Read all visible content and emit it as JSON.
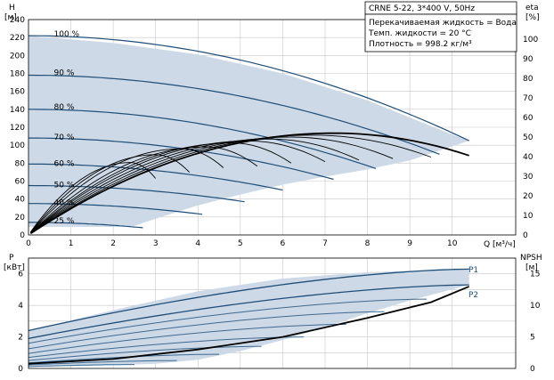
{
  "header": {
    "model": "CRNE 5-22, 3*400 V, 50Hz",
    "info_lines": [
      "Перекачиваемая жидкость = Вода",
      "Темп. жидкости = 20 °C",
      "Плотность = 998.2 кг/м³"
    ]
  },
  "axes": {
    "h_label": "H",
    "h_unit": "[м]",
    "eta_label": "eta",
    "eta_unit": "[%]",
    "q_label": "Q [м³/ч]",
    "p_label": "P",
    "p_unit": "[кВт]",
    "npsh_label": "NPSH",
    "npsh_unit": "[м]"
  },
  "colors": {
    "envelope_fill": "#cdd9e6",
    "grid": "#c7c7c7",
    "curve_dark": "#1f4e79",
    "curve_black": "#000000",
    "curve_medium": "#3e6a93"
  },
  "chart_data": [
    {
      "type": "line",
      "name": "head-curves",
      "xlabel": "Q [м³/ч]",
      "ylabel": "H [м]",
      "y2label": "eta [%]",
      "xlim": [
        0,
        11.5
      ],
      "ylim": [
        0,
        240
      ],
      "y2lim": [
        0,
        110
      ],
      "x_ticks": [
        0,
        1,
        2,
        3,
        4,
        5,
        6,
        7,
        8,
        9,
        10
      ],
      "y_ticks": [
        0,
        20,
        40,
        60,
        80,
        100,
        120,
        140,
        160,
        180,
        200,
        220,
        240
      ],
      "y2_ticks": [
        0,
        10,
        20,
        30,
        40,
        50,
        60,
        70,
        80,
        90,
        100
      ],
      "grid": true,
      "speed_labels": [
        {
          "text": "100 %",
          "at_q": 0.6,
          "at_h": 224
        },
        {
          "text": "90 %",
          "at_q": 0.6,
          "at_h": 181
        },
        {
          "text": "80 %",
          "at_q": 0.6,
          "at_h": 143
        },
        {
          "text": "70 %",
          "at_q": 0.6,
          "at_h": 109
        },
        {
          "text": "60 %",
          "at_q": 0.6,
          "at_h": 80
        },
        {
          "text": "50 %",
          "at_q": 0.6,
          "at_h": 56
        },
        {
          "text": "40 %",
          "at_q": 0.6,
          "at_h": 36
        },
        {
          "text": "25 %",
          "at_q": 0.6,
          "at_h": 16
        }
      ],
      "envelope": {
        "upper": [
          [
            0,
            222
          ],
          [
            2,
            214
          ],
          [
            4,
            201
          ],
          [
            6,
            180
          ],
          [
            8,
            150
          ],
          [
            10,
            112
          ],
          [
            10.4,
            105
          ]
        ],
        "lower": [
          [
            10.4,
            105
          ],
          [
            9,
            83
          ],
          [
            8,
            73
          ],
          [
            7,
            65
          ],
          [
            6,
            56
          ],
          [
            5,
            45
          ],
          [
            4,
            33
          ],
          [
            3,
            18
          ],
          [
            2.5,
            10
          ],
          [
            2,
            9
          ],
          [
            1,
            9
          ],
          [
            0,
            9
          ]
        ]
      },
      "head_curves": [
        {
          "speed": 100,
          "h0": 222,
          "qmax": 10.4,
          "hend": 105
        },
        {
          "speed": 90,
          "h0": 178,
          "qmax": 9.7,
          "hend": 90
        },
        {
          "speed": 80,
          "h0": 140,
          "qmax": 8.2,
          "hend": 74
        },
        {
          "speed": 70,
          "h0": 108,
          "qmax": 7.2,
          "hend": 62
        },
        {
          "speed": 60,
          "h0": 79,
          "qmax": 6.0,
          "hend": 50
        },
        {
          "speed": 50,
          "h0": 55,
          "qmax": 5.1,
          "hend": 37
        },
        {
          "speed": 40,
          "h0": 35,
          "qmax": 4.1,
          "hend": 23
        },
        {
          "speed": 25,
          "h0": 14,
          "qmax": 2.7,
          "hend": 8
        }
      ],
      "eta_curves": [
        {
          "qmax": 10.4,
          "peak": 52,
          "qpeak": 7.2
        },
        {
          "qmax": 9.5,
          "peak": 51,
          "qpeak": 6.7
        },
        {
          "qmax": 8.6,
          "peak": 50,
          "qpeak": 6.2
        },
        {
          "qmax": 7.8,
          "peak": 49,
          "qpeak": 5.7
        },
        {
          "qmax": 7.0,
          "peak": 48,
          "qpeak": 5.2
        },
        {
          "qmax": 6.2,
          "peak": 47,
          "qpeak": 4.8
        },
        {
          "qmax": 5.4,
          "peak": 45,
          "qpeak": 4.2
        },
        {
          "qmax": 4.6,
          "peak": 44,
          "qpeak": 3.6
        },
        {
          "qmax": 3.8,
          "peak": 41,
          "qpeak": 3.0
        },
        {
          "qmax": 3.0,
          "peak": 37,
          "qpeak": 2.4
        }
      ]
    },
    {
      "type": "line",
      "name": "power-npsh-curves",
      "xlabel": "",
      "ylabel": "P [кВт]",
      "y2label": "NPSH [м]",
      "xlim": [
        0,
        11.5
      ],
      "ylim": [
        0,
        7
      ],
      "y2lim": [
        0,
        17.5
      ],
      "y_ticks": [
        0,
        2,
        4,
        6
      ],
      "y2_ticks": [
        0,
        5,
        10,
        15
      ],
      "grid": true,
      "series_labels": [
        "P1",
        "P2"
      ],
      "envelope": {
        "upper": [
          [
            0,
            2.4
          ],
          [
            2,
            3.7
          ],
          [
            4,
            4.9
          ],
          [
            6,
            5.7
          ],
          [
            8,
            6.1
          ],
          [
            10.4,
            6.3
          ]
        ],
        "lower": [
          [
            10.4,
            5.3
          ],
          [
            9,
            4.3
          ],
          [
            8,
            3.5
          ],
          [
            7,
            2.6
          ],
          [
            6,
            1.8
          ],
          [
            5,
            1.1
          ],
          [
            4,
            0.55
          ],
          [
            3,
            0.3
          ],
          [
            2,
            0.2
          ],
          [
            0,
            0.1
          ]
        ]
      },
      "power_curves": [
        {
          "p0": 2.4,
          "qmax": 10.4,
          "pend": 6.3
        },
        {
          "p0": 1.9,
          "qmax": 10.4,
          "pend": 5.3
        },
        {
          "p0": 1.6,
          "qmax": 9.4,
          "pend": 4.4
        },
        {
          "p0": 1.25,
          "qmax": 8.4,
          "pend": 3.6
        },
        {
          "p0": 0.95,
          "qmax": 7.5,
          "pend": 2.8
        },
        {
          "p0": 0.7,
          "qmax": 6.5,
          "pend": 2.0
        },
        {
          "p0": 0.5,
          "qmax": 5.5,
          "pend": 1.4
        },
        {
          "p0": 0.35,
          "qmax": 4.5,
          "pend": 0.9
        },
        {
          "p0": 0.22,
          "qmax": 3.5,
          "pend": 0.5
        },
        {
          "p0": 0.12,
          "qmax": 2.5,
          "pend": 0.25
        }
      ],
      "npsh_curve": [
        [
          0,
          0.3
        ],
        [
          2,
          0.6
        ],
        [
          4,
          1.2
        ],
        [
          6,
          2.0
        ],
        [
          8,
          3.2
        ],
        [
          9.5,
          4.2
        ],
        [
          10.4,
          5.2
        ]
      ]
    }
  ]
}
